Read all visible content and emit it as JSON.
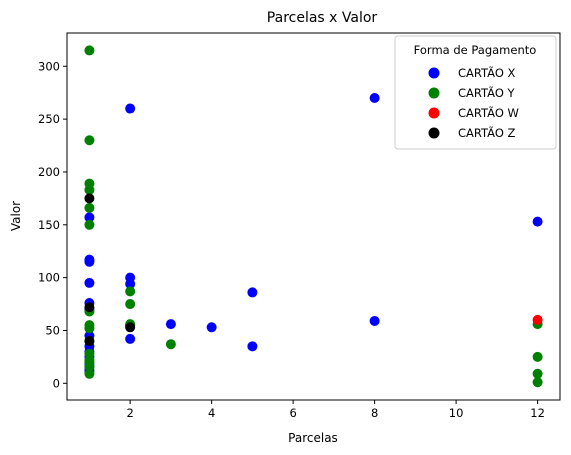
{
  "chart_data": {
    "type": "scatter",
    "title": "Parcelas x Valor",
    "xlabel": "Parcelas",
    "ylabel": "Valor",
    "xlim": [
      0.45,
      12.55
    ],
    "ylim": [
      -15.8,
      331.5
    ],
    "x_ticks": [
      2,
      4,
      6,
      8,
      10,
      12
    ],
    "y_ticks": [
      0,
      50,
      100,
      150,
      200,
      250,
      300
    ],
    "legend": {
      "title": "Forma de Pagamento",
      "placement": "top-right"
    },
    "grid": false,
    "series": [
      {
        "name": "CARTÃO X",
        "color": "#0000ff",
        "points": [
          [
            1,
            157
          ],
          [
            1,
            117
          ],
          [
            1,
            115
          ],
          [
            1,
            95
          ],
          [
            1,
            76
          ],
          [
            1,
            70
          ],
          [
            1,
            45
          ],
          [
            1,
            35
          ],
          [
            1,
            30
          ],
          [
            1,
            25
          ],
          [
            1,
            18
          ],
          [
            1,
            15
          ],
          [
            1,
            12
          ],
          [
            2,
            260
          ],
          [
            2,
            100
          ],
          [
            2,
            94
          ],
          [
            2,
            55
          ],
          [
            2,
            42
          ],
          [
            3,
            56
          ],
          [
            4,
            53
          ],
          [
            5,
            86
          ],
          [
            5,
            35
          ],
          [
            8,
            270
          ],
          [
            8,
            59
          ],
          [
            12,
            153
          ]
        ]
      },
      {
        "name": "CARTÃO Y",
        "color": "#008000",
        "points": [
          [
            1,
            315
          ],
          [
            1,
            230
          ],
          [
            1,
            189
          ],
          [
            1,
            183
          ],
          [
            1,
            166
          ],
          [
            1,
            150
          ],
          [
            1,
            68
          ],
          [
            1,
            55
          ],
          [
            1,
            52
          ],
          [
            1,
            40
          ],
          [
            1,
            28
          ],
          [
            1,
            22
          ],
          [
            1,
            20
          ],
          [
            1,
            16
          ],
          [
            1,
            9
          ],
          [
            2,
            87
          ],
          [
            2,
            75
          ],
          [
            2,
            56
          ],
          [
            3,
            37
          ],
          [
            12,
            56
          ],
          [
            12,
            25
          ],
          [
            12,
            9
          ],
          [
            12,
            1
          ]
        ]
      },
      {
        "name": "CARTÃO W",
        "color": "#ff0000",
        "points": [
          [
            12,
            60
          ]
        ]
      },
      {
        "name": "CARTÃO Z",
        "color": "#000000",
        "points": [
          [
            1,
            175
          ],
          [
            1,
            72
          ],
          [
            1,
            40
          ],
          [
            2,
            53
          ]
        ]
      }
    ]
  }
}
